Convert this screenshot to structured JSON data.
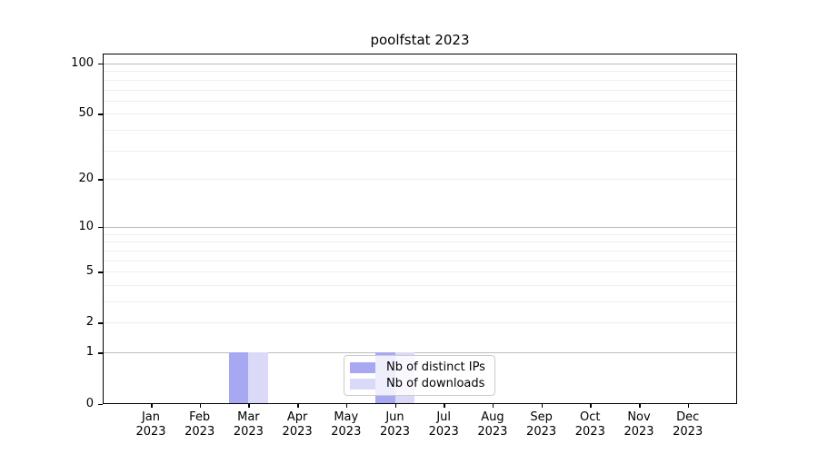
{
  "chart_data": {
    "type": "bar",
    "title": "poolfstat 2023",
    "categories": [
      "Jan",
      "Feb",
      "Mar",
      "Apr",
      "May",
      "Jun",
      "Jul",
      "Aug",
      "Sep",
      "Oct",
      "Nov",
      "Dec"
    ],
    "year_label": "2023",
    "series": [
      {
        "name": "Nb of distinct IPs",
        "color": "#a8a8f2",
        "values": [
          0,
          0,
          1,
          0,
          0,
          1,
          0,
          0,
          0,
          0,
          0,
          0
        ]
      },
      {
        "name": "Nb of downloads",
        "color": "#dadaf8",
        "values": [
          0,
          0,
          1,
          0,
          0,
          1,
          0,
          0,
          0,
          0,
          0,
          0
        ]
      }
    ],
    "y_axis": {
      "scale": "log1p",
      "tick_values": [
        0,
        1,
        2,
        5,
        10,
        20,
        50,
        100
      ],
      "major_gridlines": [
        1,
        10,
        100
      ],
      "minor_gridlines": [
        2,
        3,
        4,
        5,
        6,
        7,
        8,
        9,
        20,
        30,
        40,
        50,
        60,
        70,
        80,
        90
      ],
      "max": 113
    },
    "legend": {
      "position": "bottom-center"
    },
    "colors": {
      "grid_major": "#bdbdbd",
      "grid_minor": "#efefef",
      "axis": "#000000",
      "background": "#ffffff",
      "text": "#000000"
    },
    "grid": "horizontal-only"
  }
}
